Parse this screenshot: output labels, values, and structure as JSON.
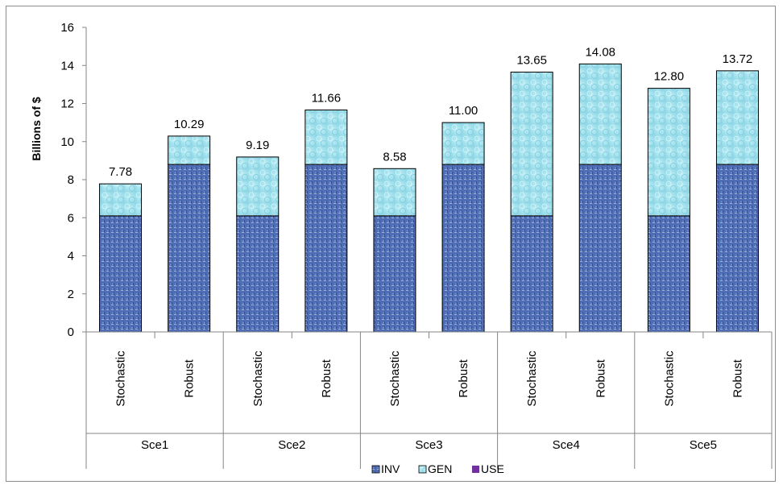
{
  "chart_data": {
    "type": "bar",
    "stacked": true,
    "ylabel": "Billions of $",
    "ylim": [
      0,
      16
    ],
    "ytick_step": 2,
    "ytick_labels": [
      "0",
      "2",
      "4",
      "6",
      "8",
      "10",
      "12",
      "14",
      "16"
    ],
    "groups": [
      "Sce1",
      "Sce2",
      "Sce3",
      "Sce4",
      "Sce5"
    ],
    "categories": [
      "Stochastic",
      "Robust",
      "Stochastic",
      "Robust",
      "Stochastic",
      "Robust",
      "Stochastic",
      "Robust",
      "Stochastic",
      "Robust"
    ],
    "series": [
      {
        "name": "INV",
        "color": "#4a69b0",
        "values": [
          6.1,
          8.8,
          6.1,
          8.8,
          6.1,
          8.8,
          6.1,
          8.8,
          6.1,
          8.8
        ]
      },
      {
        "name": "GEN",
        "color": "#a6e3ee",
        "values": [
          1.68,
          1.49,
          3.09,
          2.86,
          2.48,
          2.2,
          7.55,
          5.28,
          6.7,
          4.92
        ]
      },
      {
        "name": "USE",
        "color": "#7030a0",
        "values": [
          0,
          0,
          0,
          0,
          0,
          0,
          0,
          0,
          0,
          0
        ]
      }
    ],
    "totals": [
      7.78,
      10.29,
      9.19,
      11.66,
      8.58,
      11.0,
      13.65,
      14.08,
      12.8,
      13.72
    ],
    "total_labels": [
      "7.78",
      "10.29",
      "9.19",
      "11.66",
      "8.58",
      "11.00",
      "13.65",
      "14.08",
      "12.80",
      "13.72"
    ],
    "grid": false,
    "legend_position": "bottom"
  }
}
